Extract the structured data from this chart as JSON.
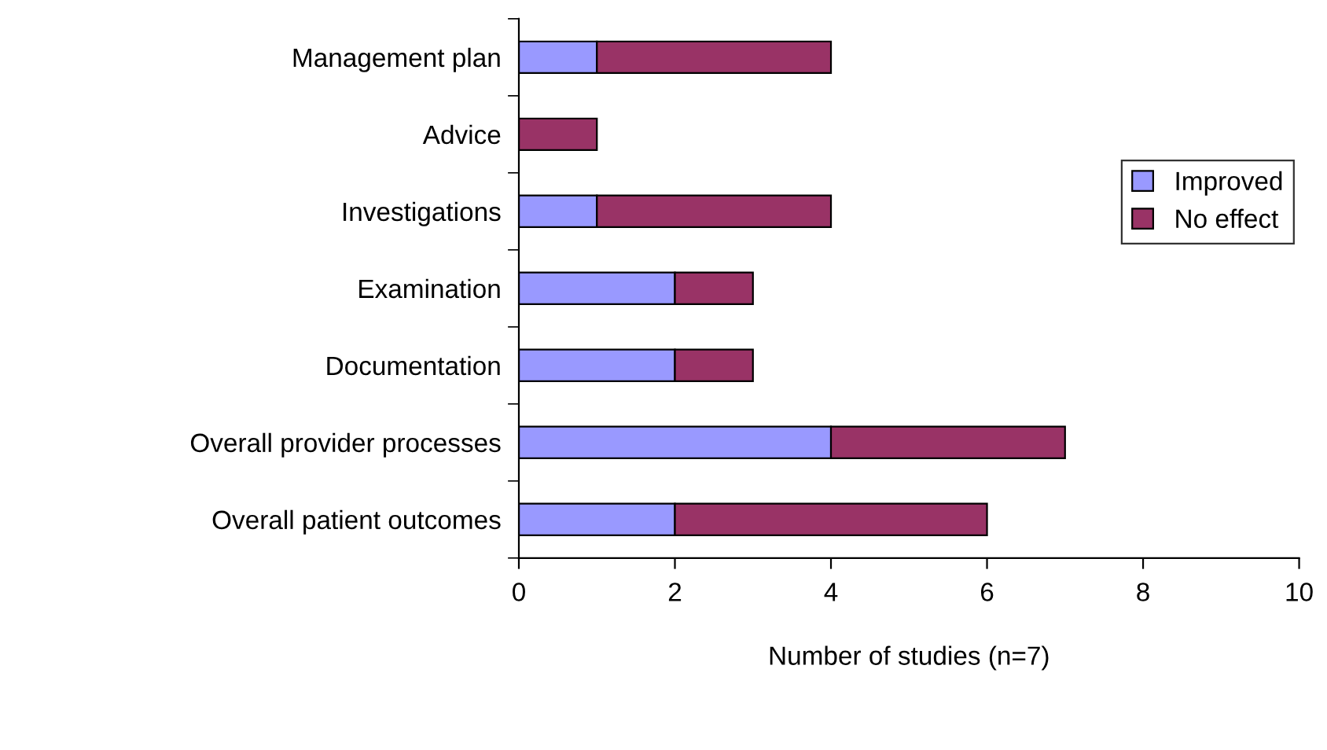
{
  "chart_data": {
    "type": "bar",
    "orientation": "horizontal",
    "stacked": true,
    "xlabel": "Number of studies (n=7)",
    "categories": [
      "Management plan",
      "Advice",
      "Investigations",
      "Examination",
      "Documentation",
      "Overall provider processes",
      "Overall patient outcomes"
    ],
    "series": [
      {
        "name": "Improved",
        "color": "#9999ff",
        "values": [
          1,
          0,
          1,
          2,
          2,
          4,
          2
        ]
      },
      {
        "name": "No effect",
        "color": "#993366",
        "values": [
          3,
          1,
          3,
          1,
          1,
          3,
          4
        ]
      }
    ],
    "xlim": [
      0,
      10
    ],
    "xticks": [
      0,
      2,
      4,
      6,
      8,
      10
    ],
    "grid": false,
    "legend": "right"
  }
}
